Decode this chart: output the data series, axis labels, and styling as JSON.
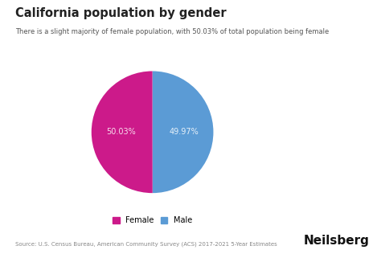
{
  "title": "California population by gender",
  "subtitle": "There is a slight majority of female population, with 50.03% of total population being female",
  "slices": [
    49.97,
    50.03
  ],
  "labels": [
    "Male",
    "Female"
  ],
  "colors": [
    "#5B9BD5",
    "#CC1A8A"
  ],
  "autopct_labels": [
    "49.97%",
    "50.03%"
  ],
  "legend_colors": [
    "#CC1A8A",
    "#5B9BD5"
  ],
  "legend_labels": [
    "Female",
    "Male"
  ],
  "source_text": "Source: U.S. Census Bureau, American Community Survey (ACS) 2017-2021 5-Year Estimates",
  "brand_text": "Neilsberg",
  "background_color": "#FFFFFF",
  "text_color": "#222222",
  "label_color": "#FFFFFF",
  "start_angle": 90
}
